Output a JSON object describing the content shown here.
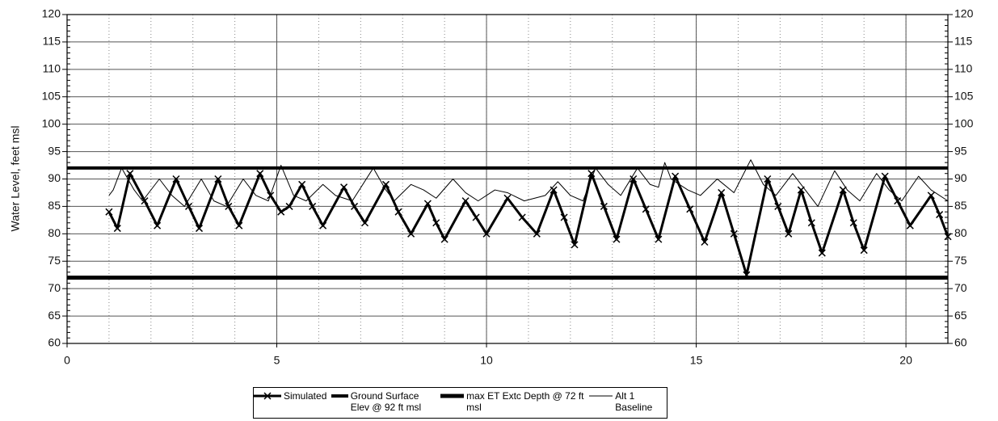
{
  "chart_data": {
    "type": "line",
    "y_label": "Water Level, feet msl",
    "xlim": [
      0,
      21
    ],
    "xticks": [
      0,
      5,
      10,
      15,
      20
    ],
    "ylim": [
      60,
      120
    ],
    "yticks": [
      60,
      65,
      70,
      75,
      80,
      85,
      90,
      95,
      100,
      105,
      110,
      115,
      120
    ],
    "y2lim": [
      60,
      120
    ],
    "y2ticks": [
      60,
      65,
      70,
      75,
      80,
      85,
      90,
      95,
      100,
      105,
      110,
      115,
      120
    ],
    "x_minor_step": 1,
    "y_minor_step": 1,
    "grid": true,
    "legend": "bottom",
    "series": [
      {
        "name": "Simulated",
        "color": "#000000",
        "width": 3,
        "marker": "x",
        "x": [
          1.0,
          1.2,
          1.5,
          1.85,
          2.15,
          2.6,
          2.9,
          3.15,
          3.6,
          3.85,
          4.1,
          4.6,
          4.85,
          5.1,
          5.3,
          5.6,
          5.85,
          6.1,
          6.6,
          6.85,
          7.1,
          7.6,
          7.9,
          8.2,
          8.6,
          8.8,
          9.0,
          9.5,
          9.75,
          10.0,
          10.5,
          10.85,
          11.2,
          11.6,
          11.85,
          12.1,
          12.5,
          12.8,
          13.1,
          13.5,
          13.8,
          14.1,
          14.5,
          14.85,
          15.2,
          15.6,
          15.9,
          16.2,
          16.7,
          16.95,
          17.2,
          17.5,
          17.75,
          18.0,
          18.5,
          18.75,
          19.0,
          19.5,
          19.8,
          20.1,
          20.6,
          20.8,
          21.0
        ],
        "values": [
          84,
          81,
          91,
          86,
          81.5,
          90,
          85,
          81,
          90,
          85,
          81.5,
          91,
          87,
          84,
          85,
          89,
          85,
          81.5,
          88.5,
          85,
          82,
          89,
          84,
          80,
          85.5,
          82,
          79,
          86,
          83,
          80,
          86.5,
          83,
          80,
          88,
          83,
          78,
          91,
          85,
          79,
          90,
          84.5,
          79,
          90.5,
          84.5,
          78.5,
          87.5,
          80,
          72.5,
          90,
          85,
          80,
          88,
          82,
          76.5,
          88,
          82,
          77,
          90.5,
          86,
          81.5,
          87,
          83.5,
          79.5
        ]
      },
      {
        "name": "Ground Surface Elev @ 92 ft msl",
        "color": "#000000",
        "width": 4,
        "x": [
          0,
          21
        ],
        "values": [
          92,
          92
        ]
      },
      {
        "name": "max ET Extc Depth @ 72 ft msl",
        "color": "#000000",
        "width": 5,
        "x": [
          0,
          21
        ],
        "values": [
          72,
          72
        ]
      },
      {
        "name": "Alt 1 Baseline",
        "color": "#000000",
        "width": 1,
        "x": [
          1.0,
          1.1,
          1.3,
          1.6,
          1.8,
          2.2,
          2.5,
          2.8,
          3.2,
          3.5,
          3.8,
          4.2,
          4.5,
          4.8,
          5.1,
          5.4,
          5.7,
          6.1,
          6.4,
          6.8,
          7.3,
          7.6,
          7.8,
          8.2,
          8.5,
          8.8,
          9.2,
          9.5,
          9.8,
          10.2,
          10.5,
          10.9,
          11.4,
          11.7,
          12.0,
          12.3,
          12.6,
          12.9,
          13.2,
          13.6,
          13.9,
          14.1,
          14.25,
          14.4,
          14.8,
          15.1,
          15.5,
          15.9,
          16.3,
          16.6,
          16.9,
          17.3,
          17.6,
          17.9,
          18.3,
          18.6,
          18.9,
          19.3,
          19.6,
          19.9,
          20.3,
          20.6,
          21.0
        ],
        "values": [
          87,
          88,
          92,
          88,
          86,
          90,
          87,
          85,
          90,
          86,
          85,
          90,
          87,
          86,
          92.5,
          87,
          86,
          89,
          87,
          86,
          92,
          88,
          86,
          89,
          88,
          86.5,
          90,
          87.5,
          86,
          88,
          87.5,
          86,
          87,
          89.5,
          87,
          86,
          92,
          89,
          87,
          92,
          89,
          88.5,
          93,
          90,
          88,
          87,
          90,
          87.5,
          93.5,
          89,
          87,
          91,
          88,
          85,
          91.5,
          88,
          86,
          91,
          88,
          86,
          90.5,
          88,
          86
        ]
      }
    ]
  }
}
